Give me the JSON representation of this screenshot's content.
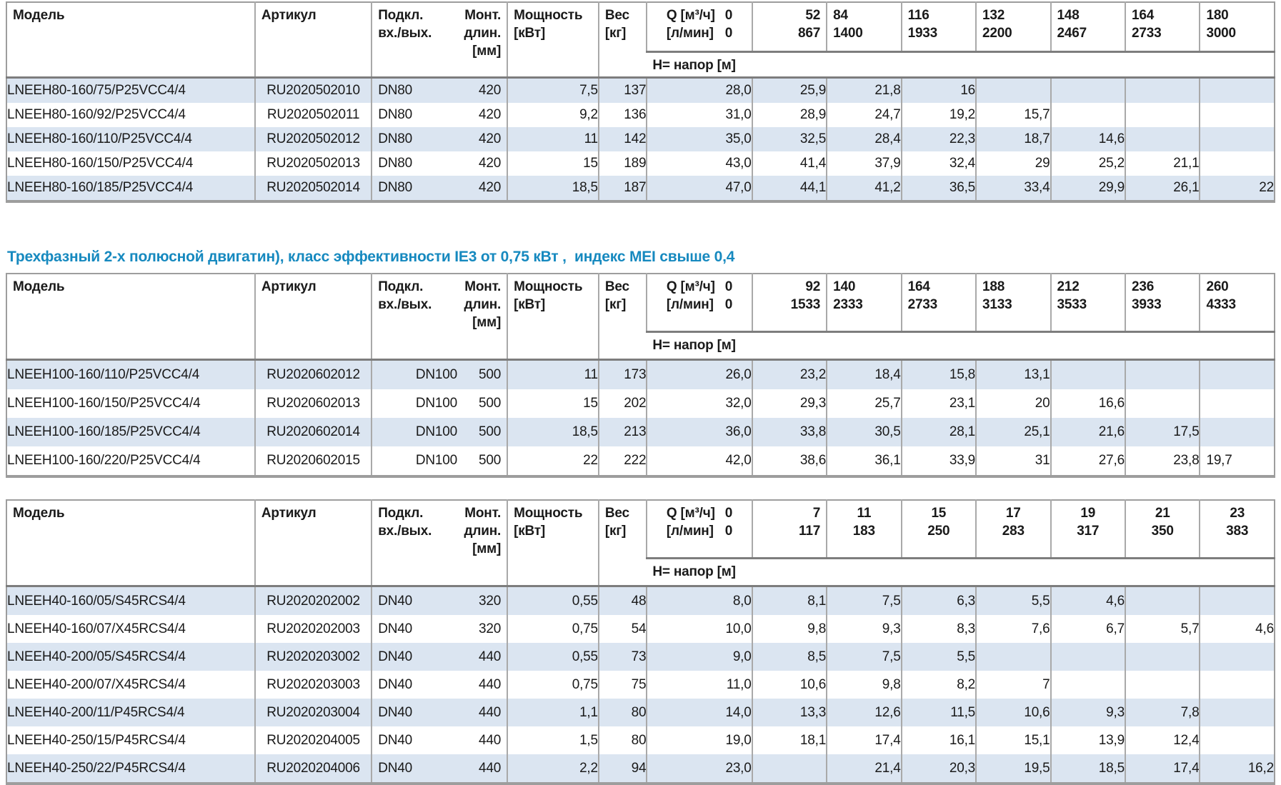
{
  "heading": {
    "text": "Трехфазный 2-х полюсной двигатин), класс эффективности IE3 от 0,75 кВт ,  индекс MEI свыше 0,4",
    "color": "#1689bf"
  },
  "labels": {
    "model": "Модель",
    "sku": "Артикул",
    "conn_lines": [
      "Подкл.",
      "вх./вых."
    ],
    "mount_lines": [
      "Монт.",
      "длин.",
      "[мм]"
    ],
    "power_lines": [
      "Мощность",
      "[кВт]"
    ],
    "weight_lines": [
      "Вес",
      "[кг]"
    ],
    "q_label_lines": [
      "Q [м³/ч]",
      "[л/мин]"
    ],
    "q_zero_lines": [
      "0",
      "0"
    ],
    "head_row_label": "H= напор [м]"
  },
  "colors": {
    "stripe": "#dbe5f1",
    "border": "#a9a9a9",
    "dark_border": "#7d7d7d",
    "heading_accent": "#1689bf"
  },
  "tables": [
    {
      "name": "lneeh80-160",
      "q_m3h": [
        "52",
        "84",
        "116",
        "132",
        "148",
        "164",
        "180"
      ],
      "q_lmin": [
        "867",
        "1400",
        "1933",
        "2200",
        "2467",
        "2733",
        "3000"
      ],
      "rows": [
        {
          "model": "LNEEH80-160/75/P25VCC4/4",
          "sku": "RU2020502010",
          "dn": "DN80",
          "len": "420",
          "power": "7,5",
          "weight": "137",
          "h": [
            "28,0",
            "25,9",
            "21,8",
            "16",
            "",
            "",
            "",
            ""
          ]
        },
        {
          "model": "LNEEH80-160/92/P25VCC4/4",
          "sku": "RU2020502011",
          "dn": "DN80",
          "len": "420",
          "power": "9,2",
          "weight": "136",
          "h": [
            "31,0",
            "28,9",
            "24,7",
            "19,2",
            "15,7",
            "",
            "",
            ""
          ]
        },
        {
          "model": "LNEEH80-160/110/P25VCC4/4",
          "sku": "RU2020502012",
          "dn": "DN80",
          "len": "420",
          "power": "11",
          "weight": "142",
          "h": [
            "35,0",
            "32,5",
            "28,4",
            "22,3",
            "18,7",
            "14,6",
            "",
            ""
          ]
        },
        {
          "model": "LNEEH80-160/150/P25VCC4/4",
          "sku": "RU2020502013",
          "dn": "DN80",
          "len": "420",
          "power": "15",
          "weight": "189",
          "h": [
            "43,0",
            "41,4",
            "37,9",
            "32,4",
            "29",
            "25,2",
            "21,1",
            ""
          ]
        },
        {
          "model": "LNEEH80-160/185/P25VCC4/4",
          "sku": "RU2020502014",
          "dn": "DN80",
          "len": "420",
          "power": "18,5",
          "weight": "187",
          "h": [
            "47,0",
            "44,1",
            "41,2",
            "36,5",
            "33,4",
            "29,9",
            "26,1",
            "22"
          ]
        }
      ]
    },
    {
      "name": "lneeh100-160",
      "q_m3h": [
        "92",
        "140",
        "164",
        "188",
        "212",
        "236",
        "260"
      ],
      "q_lmin": [
        "1533",
        "2333",
        "2733",
        "3133",
        "3533",
        "3933",
        "4333"
      ],
      "rows": [
        {
          "model": "LNEEH100-160/110/P25VCC4/4",
          "sku": "RU2020602012",
          "dn": "DN100",
          "len": "500",
          "power": "11",
          "weight": "173",
          "h": [
            "26,0",
            "23,2",
            "18,4",
            "15,8",
            "13,1",
            "",
            "",
            ""
          ]
        },
        {
          "model": "LNEEH100-160/150/P25VCC4/4",
          "sku": "RU2020602013",
          "dn": "DN100",
          "len": "500",
          "power": "15",
          "weight": "202",
          "h": [
            "32,0",
            "29,3",
            "25,7",
            "23,1",
            "20",
            "16,6",
            "",
            ""
          ]
        },
        {
          "model": "LNEEH100-160/185/P25VCC4/4",
          "sku": "RU2020602014",
          "dn": "DN100",
          "len": "500",
          "power": "18,5",
          "weight": "213",
          "h": [
            "36,0",
            "33,8",
            "30,5",
            "28,1",
            "25,1",
            "21,6",
            "17,5",
            ""
          ]
        },
        {
          "model": "LNEEH100-160/220/P25VCC4/4",
          "sku": "RU2020602015",
          "dn": "DN100",
          "len": "500",
          "power": "22",
          "weight": "222",
          "h": [
            "42,0",
            "38,6",
            "36,1",
            "33,9",
            "31",
            "27,6",
            "23,8",
            "19,7"
          ],
          "h_left_cells": [
            7
          ]
        }
      ]
    },
    {
      "name": "lneeh40",
      "q_m3h": [
        "7",
        "11",
        "15",
        "17",
        "19",
        "21",
        "23"
      ],
      "q_lmin": [
        "117",
        "183",
        "250",
        "283",
        "317",
        "350",
        "383"
      ],
      "rows": [
        {
          "model": "LNEEH40-160/05/S45RCS4/4",
          "sku": "RU2020202002",
          "dn": "DN40",
          "len": "320",
          "power": "0,55",
          "weight": "48",
          "h": [
            "8,0",
            "8,1",
            "7,5",
            "6,3",
            "5,5",
            "4,6",
            "",
            ""
          ]
        },
        {
          "model": "LNEEH40-160/07/X45RCS4/4",
          "sku": "RU2020202003",
          "dn": "DN40",
          "len": "320",
          "power": "0,75",
          "weight": "54",
          "h": [
            "10,0",
            "9,8",
            "9,3",
            "8,3",
            "7,6",
            "6,7",
            "5,7",
            "4,6"
          ]
        },
        {
          "model": "LNEEH40-200/05/S45RCS4/4",
          "sku": "RU2020203002",
          "dn": "DN40",
          "len": "440",
          "power": "0,55",
          "weight": "73",
          "h": [
            "9,0",
            "8,5",
            "7,5",
            "5,5",
            "",
            "",
            "",
            ""
          ]
        },
        {
          "model": "LNEEH40-200/07/X45RCS4/4",
          "sku": "RU2020203003",
          "dn": "DN40",
          "len": "440",
          "power": "0,75",
          "weight": "75",
          "h": [
            "11,0",
            "10,6",
            "9,8",
            "8,2",
            "7",
            "",
            "",
            ""
          ]
        },
        {
          "model": "LNEEH40-200/11/P45RCS4/4",
          "sku": "RU2020203004",
          "dn": "DN40",
          "len": "440",
          "power": "1,1",
          "weight": "80",
          "h": [
            "14,0",
            "13,3",
            "12,6",
            "11,5",
            "10,6",
            "9,3",
            "7,8",
            ""
          ]
        },
        {
          "model": "LNEEH40-250/15/P45RCS4/4",
          "sku": "RU2020204005",
          "dn": "DN40",
          "len": "440",
          "power": "1,5",
          "weight": "80",
          "h": [
            "19,0",
            "18,1",
            "17,4",
            "16,1",
            "15,1",
            "13,9",
            "12,4",
            ""
          ]
        },
        {
          "model": "LNEEH40-250/22/P45RCS4/4",
          "sku": "RU2020204006",
          "dn": "DN40",
          "len": "440",
          "power": "2,2",
          "weight": "94",
          "h": [
            "23,0",
            "",
            "21,4",
            "20,3",
            "19,5",
            "18,5",
            "17,4",
            "16,2"
          ]
        }
      ]
    }
  ]
}
